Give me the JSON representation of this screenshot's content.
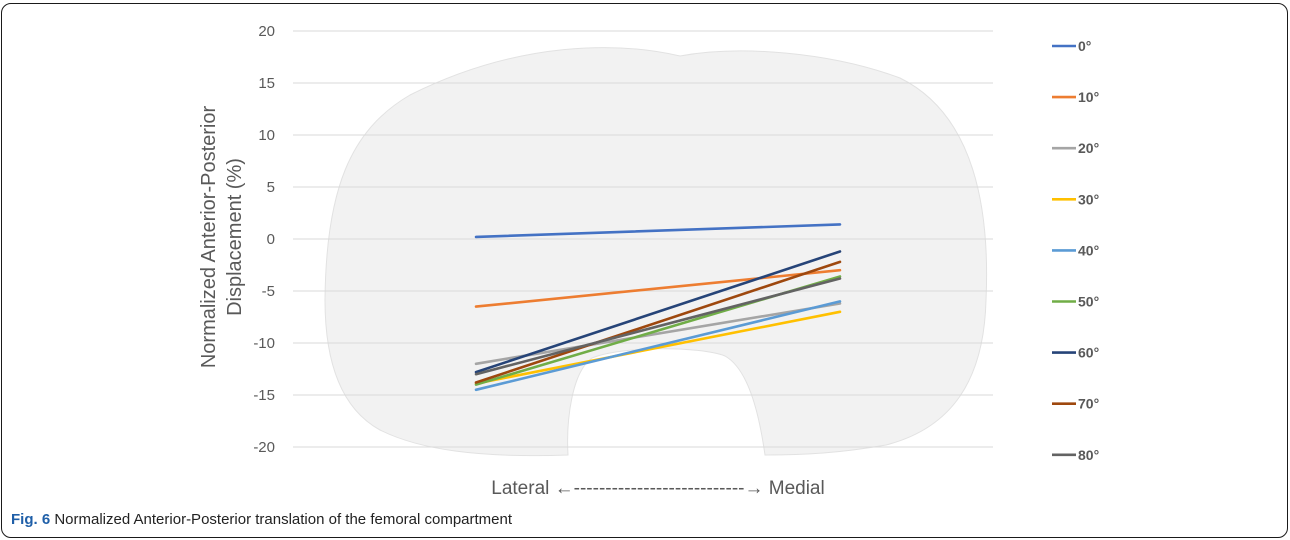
{
  "caption": {
    "label": "Fig. 6",
    "text": "Normalized Anterior-Posterior translation of the femoral compartment"
  },
  "chart_data": {
    "type": "line",
    "title": "",
    "ylabel_line1": "Normalized Anterior-Posterior",
    "ylabel_line2": "Displacement (%)",
    "xlabel": "",
    "categories": [
      "Lateral",
      "Medial"
    ],
    "x_annotation": "Lateral ←---------------------------→ Medial",
    "ylim": [
      -20,
      20
    ],
    "yticks": [
      20,
      15,
      10,
      5,
      0,
      -5,
      -10,
      -15,
      -20
    ],
    "grid": true,
    "legend_position": "right",
    "background_shape": "femoral-condyle-outline",
    "series": [
      {
        "name": "0°",
        "color": "#4472C4",
        "values": [
          0.2,
          1.4
        ]
      },
      {
        "name": "10°",
        "color": "#ED7D31",
        "values": [
          -6.5,
          -3.0
        ]
      },
      {
        "name": "20°",
        "color": "#A5A5A5",
        "values": [
          -12.0,
          -6.2
        ]
      },
      {
        "name": "30°",
        "color": "#FFC000",
        "values": [
          -13.9,
          -7.0
        ]
      },
      {
        "name": "40°",
        "color": "#5B9BD5",
        "values": [
          -14.5,
          -6.0
        ]
      },
      {
        "name": "50°",
        "color": "#70AD47",
        "values": [
          -14.0,
          -3.6
        ]
      },
      {
        "name": "60°",
        "color": "#264478",
        "values": [
          -12.8,
          -1.2
        ]
      },
      {
        "name": "70°",
        "color": "#9E480E",
        "values": [
          -13.8,
          -2.2
        ]
      },
      {
        "name": "80°",
        "color": "#636363",
        "values": [
          -13.0,
          -3.8
        ]
      }
    ]
  }
}
